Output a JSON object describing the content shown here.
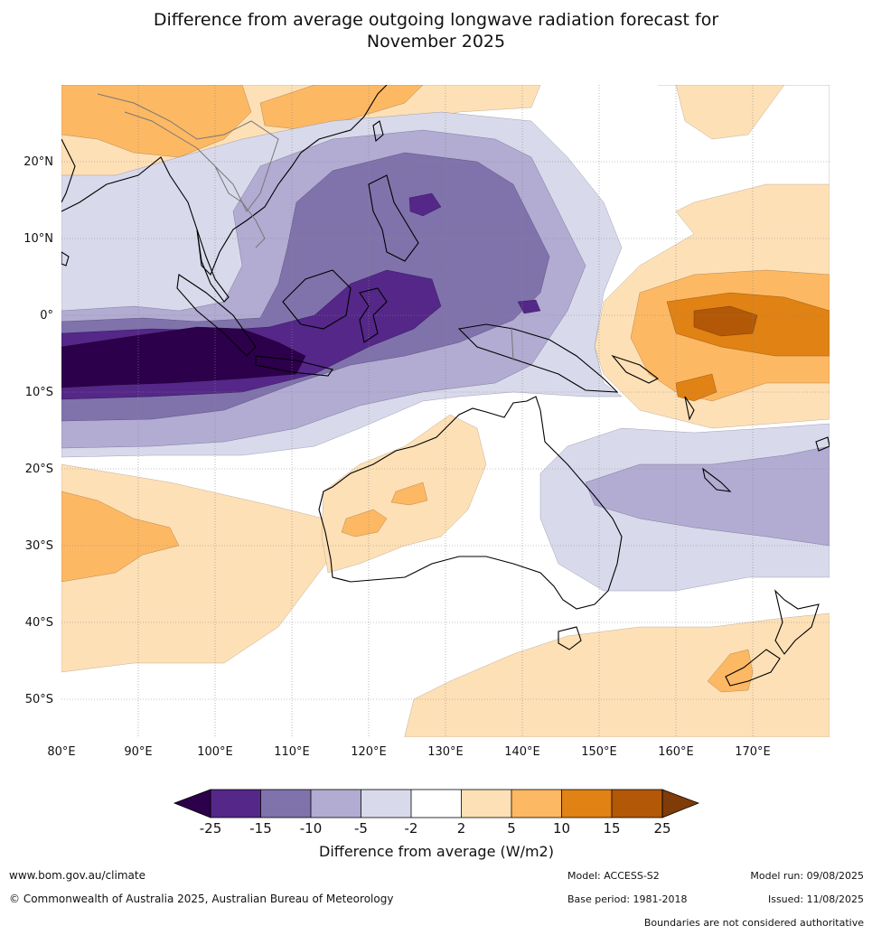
{
  "title_line1": "Difference from average outgoing longwave radiation forecast for",
  "title_line2": "November 2025",
  "map": {
    "lon_labels": [
      "80°E",
      "90°E",
      "100°E",
      "110°E",
      "120°E",
      "130°E",
      "140°E",
      "150°E",
      "160°E",
      "170°E"
    ],
    "lat_labels": [
      "20°N",
      "10°N",
      "0°",
      "10°S",
      "20°S",
      "30°S",
      "40°S",
      "50°S"
    ]
  },
  "colorbar": {
    "ticks": [
      "-25",
      "-15",
      "-10",
      "-5",
      "-2",
      "2",
      "5",
      "10",
      "15",
      "25"
    ],
    "colors": [
      "#2d004b",
      "#542788",
      "#8073ac",
      "#b2abd2",
      "#d8daeb",
      "#ffffff",
      "#fee0b6",
      "#fdb863",
      "#e08214",
      "#b35806",
      "#7f3b08"
    ],
    "title": "Difference from average (W/m2)"
  },
  "footer": {
    "website": "www.bom.gov.au/climate",
    "copyright": "© Commonwealth of Australia 2025, Australian Bureau of Meteorology",
    "model": "Model: ACCESS-S2",
    "base_period": "Base period: 1981-2018",
    "model_run": "Model run: 09/08/2025",
    "issued": "Issued: 11/08/2025",
    "disclaimer": "Boundaries are not considered authoritative"
  }
}
